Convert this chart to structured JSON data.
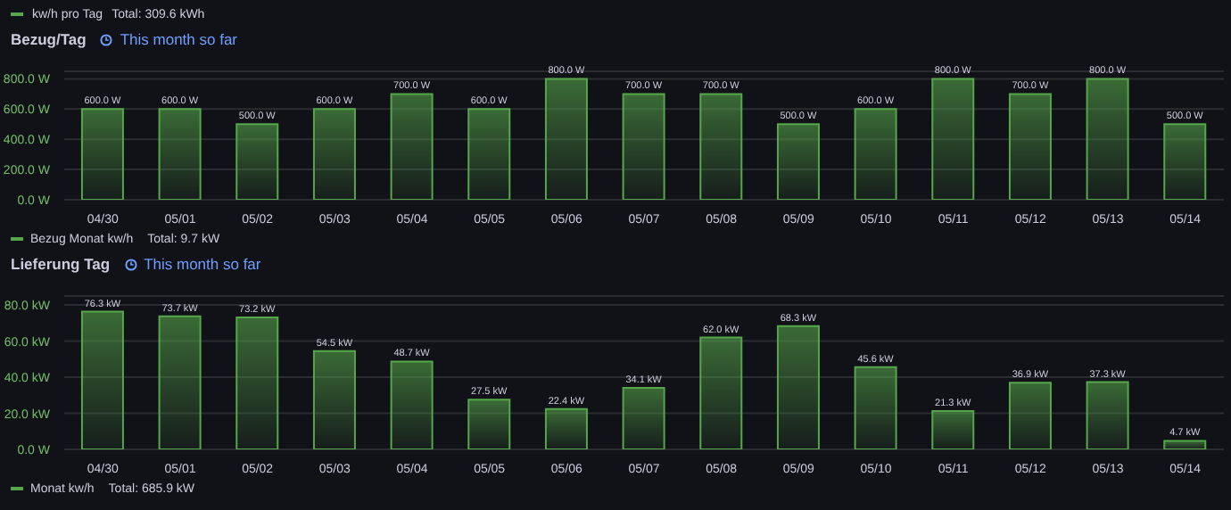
{
  "chart_data": [
    {
      "type": "bar",
      "title": "Bezug/Tag",
      "subtitle": "This month so far",
      "annotations": [
        "kw/h pro Tag",
        "Total: 309.6 kWh",
        "Total: 9.7 kW"
      ],
      "categories": [
        "04/30",
        "05/01",
        "05/02",
        "05/03",
        "05/04",
        "05/05",
        "05/06",
        "05/07",
        "05/08",
        "05/09",
        "05/10",
        "05/11",
        "05/12",
        "05/13",
        "05/14"
      ],
      "series": [
        {
          "name": "Bezug Monat kw/h",
          "color": "#56a64b",
          "values": [
            600,
            600,
            500,
            600,
            700,
            600,
            800,
            700,
            700,
            500,
            600,
            800,
            700,
            800,
            500
          ],
          "value_labels": [
            "600.0 W",
            "600.0 W",
            "500.0 W",
            "600.0 W",
            "700.0 W",
            "600.0 W",
            "800.0 W",
            "700.0 W",
            "700.0 W",
            "500.0 W",
            "600.0 W",
            "800.0 W",
            "700.0 W",
            "800.0 W",
            "500.0 W"
          ]
        }
      ],
      "ylim": [
        0,
        850
      ],
      "yticks": [
        {
          "value": 0,
          "label": "0.0 W"
        },
        {
          "value": 200,
          "label": "200.0 W"
        },
        {
          "value": 400,
          "label": "400.0 W"
        },
        {
          "value": 600,
          "label": "600.0 W"
        },
        {
          "value": 800,
          "label": "800.0 W"
        }
      ],
      "grid": "y",
      "legend": "bottom"
    },
    {
      "type": "bar",
      "title": "Lieferung Tag",
      "subtitle": "This month so far",
      "annotations": [
        "Total: 685.9 kW"
      ],
      "categories": [
        "04/30",
        "05/01",
        "05/02",
        "05/03",
        "05/04",
        "05/05",
        "05/06",
        "05/07",
        "05/08",
        "05/09",
        "05/10",
        "05/11",
        "05/12",
        "05/13",
        "05/14"
      ],
      "series": [
        {
          "name": "Monat kw/h",
          "color": "#56a64b",
          "values": [
            76.3,
            73.7,
            73.2,
            54.5,
            48.7,
            27.5,
            22.4,
            34.1,
            62.0,
            68.3,
            45.6,
            21.3,
            36.9,
            37.3,
            4.7
          ],
          "value_labels": [
            "76.3 kW",
            "73.7 kW",
            "73.2 kW",
            "54.5 kW",
            "48.7 kW",
            "27.5 kW",
            "22.4 kW",
            "34.1 kW",
            "62.0 kW",
            "68.3 kW",
            "45.6 kW",
            "21.3 kW",
            "36.9 kW",
            "37.3 kW",
            "4.7 kW"
          ]
        }
      ],
      "ylim": [
        0,
        85
      ],
      "yticks": [
        {
          "value": 0,
          "label": "0.0 W"
        },
        {
          "value": 20,
          "label": "20.0 kW"
        },
        {
          "value": 40,
          "label": "40.0 kW"
        },
        {
          "value": 60,
          "label": "60.0 kW"
        },
        {
          "value": 80,
          "label": "80.0 kW"
        }
      ],
      "grid": "y",
      "legend": "bottom"
    }
  ]
}
